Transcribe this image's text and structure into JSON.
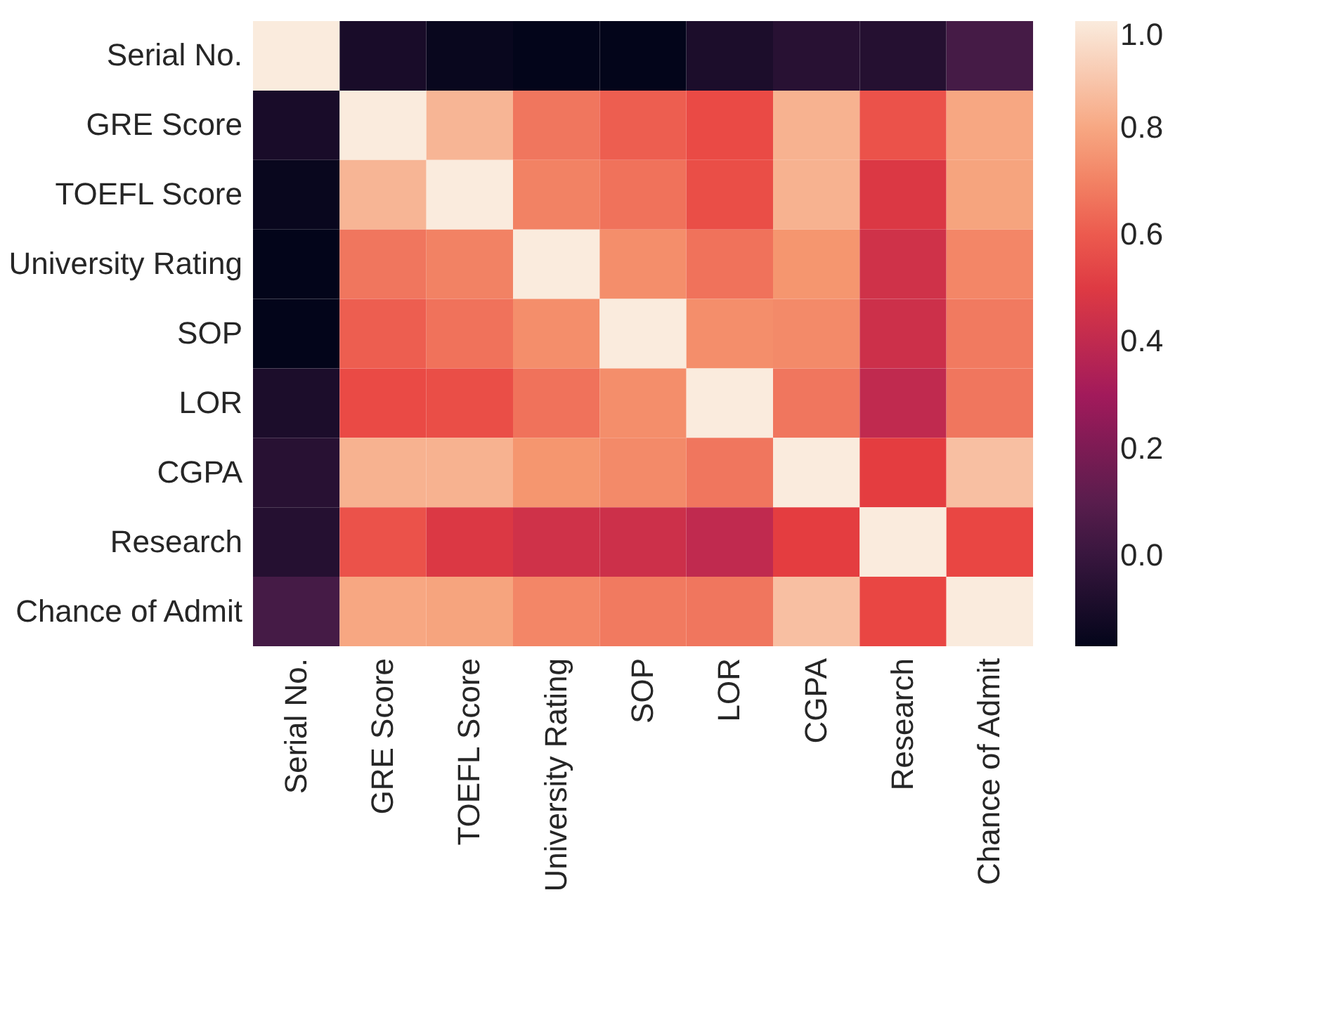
{
  "chart_data": {
    "type": "heatmap",
    "categories": [
      "Serial No.",
      "GRE Score",
      "TOEFL Score",
      "University Rating",
      "SOP",
      "LOR",
      "CGPA",
      "Research",
      "Chance of Admit"
    ],
    "y_categories": [
      "Serial No.",
      "GRE Score",
      "TOEFL Score",
      "University Rating",
      "SOP",
      "LOR",
      "CGPA",
      "Research",
      "Chance of Admit"
    ],
    "cells": [
      [
        1,
        -0.1,
        -0.15,
        -0.17,
        -0.17,
        -0.09,
        -0.05,
        -0.06,
        0.04
      ],
      [
        -0.1,
        1,
        0.84,
        0.67,
        0.61,
        0.56,
        0.83,
        0.58,
        0.8
      ],
      [
        -0.15,
        0.84,
        1,
        0.7,
        0.66,
        0.57,
        0.83,
        0.49,
        0.79
      ],
      [
        -0.17,
        0.67,
        0.7,
        1,
        0.73,
        0.66,
        0.75,
        0.45,
        0.71
      ],
      [
        -0.17,
        0.61,
        0.66,
        0.73,
        1,
        0.73,
        0.72,
        0.44,
        0.68
      ],
      [
        -0.09,
        0.56,
        0.57,
        0.66,
        0.73,
        1,
        0.67,
        0.4,
        0.67
      ],
      [
        -0.05,
        0.83,
        0.83,
        0.75,
        0.72,
        0.67,
        1,
        0.52,
        0.87
      ],
      [
        -0.06,
        0.58,
        0.49,
        0.45,
        0.44,
        0.4,
        0.52,
        1,
        0.55
      ],
      [
        0.04,
        0.8,
        0.79,
        0.71,
        0.68,
        0.67,
        0.87,
        0.55,
        1
      ]
    ],
    "clim": [
      -0.17,
      1
    ],
    "cticks": [
      {
        "value": 0,
        "label": "0.0"
      },
      {
        "value": 0.2,
        "label": "0.2"
      },
      {
        "value": 0.4,
        "label": "0.4"
      },
      {
        "value": 0.6,
        "label": "0.6"
      },
      {
        "value": 0.8,
        "label": "0.8"
      },
      {
        "value": 1,
        "label": "1.0"
      }
    ],
    "grid": false
  }
}
